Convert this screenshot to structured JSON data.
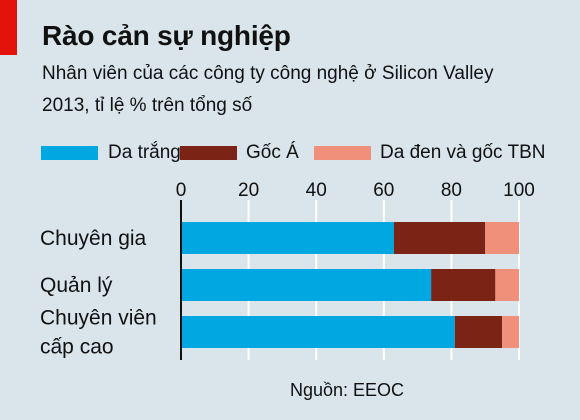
{
  "header": {
    "title": "Rào cản sự nghiệp",
    "subtitle_line1": "Nhân viên của các công ty công nghệ ở Silicon Valley",
    "subtitle_line2": "2013, tỉ lệ % trên tổng số"
  },
  "source": "Nguồn: EEOC",
  "chart_data": {
    "type": "bar",
    "orientation": "horizontal",
    "stacked": true,
    "title": "Rào cản sự nghiệp",
    "subtitle": "Nhân viên của các công ty công nghệ ở Silicon Valley 2013, tỉ lệ % trên tổng số",
    "categories": [
      "Chuyên gia",
      "Quản lý",
      "Chuyên viên cấp cao"
    ],
    "category_lines": [
      [
        "Chuyên gia"
      ],
      [
        "Quản lý"
      ],
      [
        "Chuyên viên",
        "cấp cao"
      ]
    ],
    "series": [
      {
        "name": "Da trắng",
        "color": "#00a7e1",
        "values": [
          63,
          74,
          81
        ]
      },
      {
        "name": "Gốc Á",
        "color": "#7b2314",
        "values": [
          27,
          19,
          14
        ]
      },
      {
        "name": "Da đen và gốc TBN",
        "color": "#f0907a",
        "values": [
          10,
          7,
          5
        ]
      }
    ],
    "xlim": [
      0,
      100
    ],
    "xticks": [
      0,
      20,
      40,
      60,
      80,
      100
    ],
    "x_axis_position": "top",
    "legend_position": "top",
    "grid": true,
    "grid_color": "#ffffff",
    "source": "Nguồn: EEOC"
  }
}
